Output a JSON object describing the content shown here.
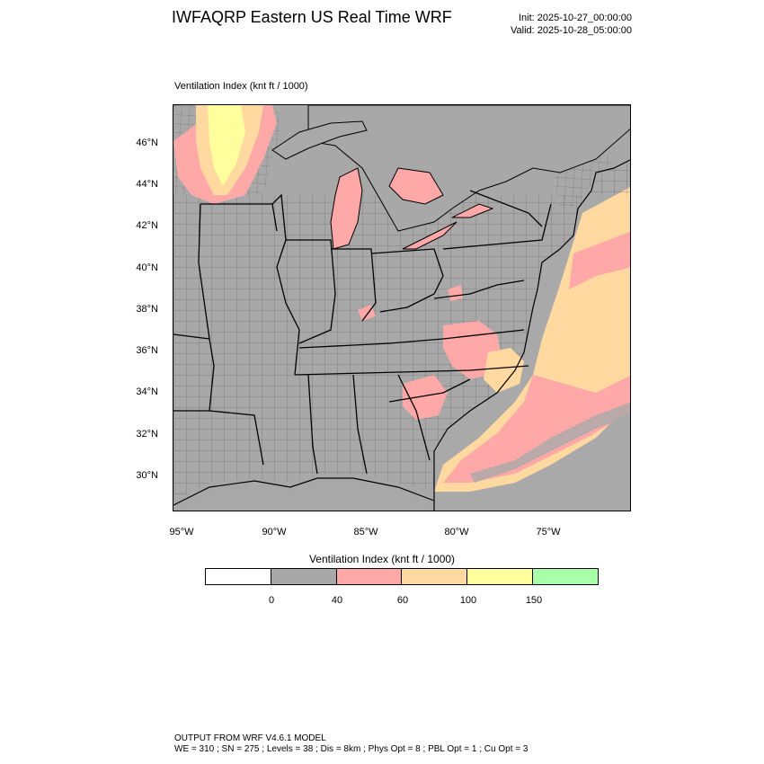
{
  "header": {
    "title": "IWFAQRP Eastern US Real Time WRF",
    "init": "Init: 2025-10-27_00:00:00",
    "valid": "Valid: 2025-10-28_05:00:00"
  },
  "plot": {
    "label": "Ventilation Index   (knt ft / 1000)",
    "lat_labels": [
      "46°N",
      "44°N",
      "42°N",
      "40°N",
      "38°N",
      "36°N",
      "34°N",
      "32°N",
      "30°N"
    ],
    "lon_labels": [
      "95°W",
      "90°W",
      "85°W",
      "80°W",
      "75°W"
    ]
  },
  "colorbar": {
    "title": "Ventilation Index  (knt ft / 1000)",
    "thresholds": [
      "0",
      "40",
      "60",
      "100",
      "150"
    ],
    "colors": [
      "#ffffff",
      "#a8a8a8",
      "#ffa8a8",
      "#ffd9a0",
      "#ffff9e",
      "#a8ffa8"
    ]
  },
  "colors": {
    "water": "#a9a9a9",
    "land": "#a8a8a8",
    "low": "#ffa8a8",
    "mid": "#ffd9a0",
    "high": "#ffff9e"
  },
  "footer": {
    "line1": "OUTPUT FROM WRF V4.6.1 MODEL",
    "line2": "WE = 310 ; SN = 275 ; Levels = 38 ; Dis = 8km ; Phys Opt = 8 ; PBL Opt = 1 ; Cu Opt = 3"
  }
}
